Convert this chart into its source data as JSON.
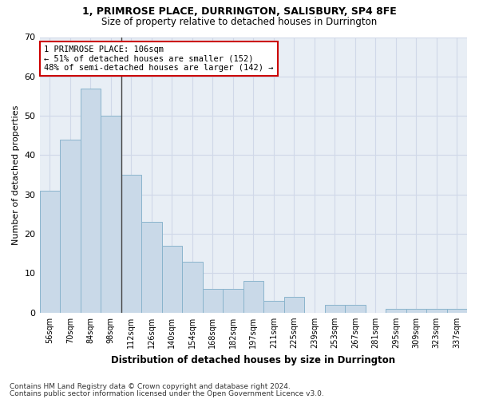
{
  "title1": "1, PRIMROSE PLACE, DURRINGTON, SALISBURY, SP4 8FE",
  "title2": "Size of property relative to detached houses in Durrington",
  "xlabel": "Distribution of detached houses by size in Durrington",
  "ylabel": "Number of detached properties",
  "bar_labels": [
    "56sqm",
    "70sqm",
    "84sqm",
    "98sqm",
    "112sqm",
    "126sqm",
    "140sqm",
    "154sqm",
    "168sqm",
    "182sqm",
    "197sqm",
    "211sqm",
    "225sqm",
    "239sqm",
    "253sqm",
    "267sqm",
    "281sqm",
    "295sqm",
    "309sqm",
    "323sqm",
    "337sqm"
  ],
  "bar_values": [
    31,
    44,
    57,
    50,
    35,
    23,
    17,
    13,
    6,
    6,
    8,
    3,
    4,
    0,
    2,
    2,
    0,
    1,
    1,
    1,
    1
  ],
  "bar_color": "#c9d9e8",
  "bar_edge_color": "#8ab4cc",
  "highlight_index": 3,
  "highlight_line_color": "#444444",
  "annotation_text": "1 PRIMROSE PLACE: 106sqm\n← 51% of detached houses are smaller (152)\n48% of semi-detached houses are larger (142) →",
  "annotation_box_color": "#ffffff",
  "annotation_box_edge": "#cc0000",
  "ylim": [
    0,
    70
  ],
  "yticks": [
    0,
    10,
    20,
    30,
    40,
    50,
    60,
    70
  ],
  "grid_color": "#d0d8e8",
  "bg_color": "#e8eef5",
  "fig_bg_color": "#ffffff",
  "footnote1": "Contains HM Land Registry data © Crown copyright and database right 2024.",
  "footnote2": "Contains public sector information licensed under the Open Government Licence v3.0."
}
